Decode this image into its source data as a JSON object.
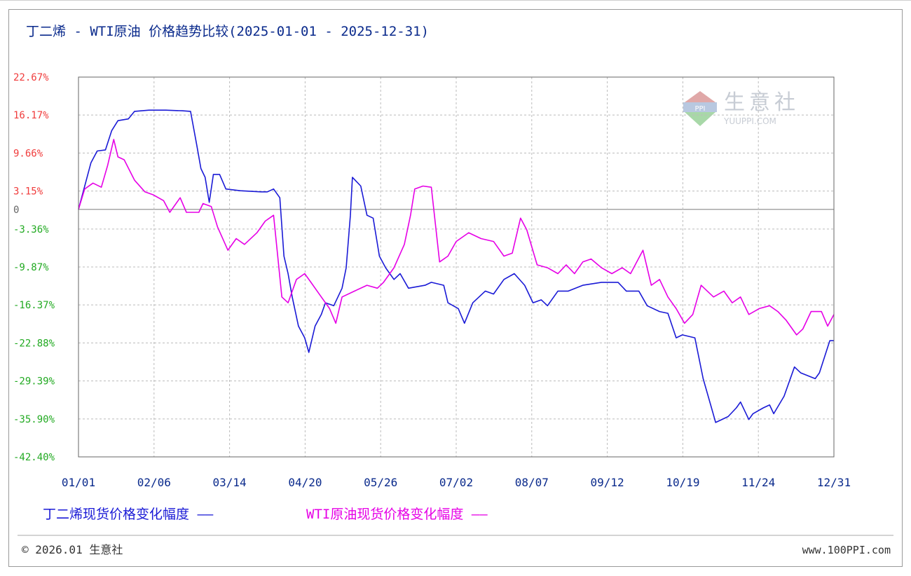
{
  "chart_data": {
    "type": "line",
    "title": "丁二烯 - WTI原油 价格趋势比较(2025-01-01 - 2025-12-31)",
    "x_ticks": [
      "01/01",
      "02/06",
      "03/14",
      "04/20",
      "05/26",
      "07/02",
      "08/07",
      "09/12",
      "10/19",
      "11/24",
      "12/31"
    ],
    "y_ticks": [
      "22.67%",
      "16.17%",
      "9.66%",
      "3.15%",
      "0",
      "-3.36%",
      "-9.87%",
      "-16.37%",
      "-22.88%",
      "-29.39%",
      "-35.90%",
      "-42.40%"
    ],
    "y_tick_values": [
      22.67,
      16.17,
      9.66,
      3.15,
      0,
      -3.36,
      -9.87,
      -16.37,
      -22.88,
      -29.39,
      -35.9,
      -42.4
    ],
    "x_range": [
      "2025-01-01",
      "2025-12-31"
    ],
    "ylim": [
      -42.4,
      22.67
    ],
    "grid": true,
    "legend_position": "bottom",
    "series": [
      {
        "name": "丁二烯现货价格变化幅度",
        "legend_label": "丁二烯现货价格变化幅度 ——",
        "color": "#1a1ad6",
        "points": [
          [
            "2025-01-01",
            0
          ],
          [
            "2025-01-04",
            4
          ],
          [
            "2025-01-07",
            8
          ],
          [
            "2025-01-10",
            10
          ],
          [
            "2025-01-14",
            10.2
          ],
          [
            "2025-01-17",
            13.5
          ],
          [
            "2025-01-20",
            15.2
          ],
          [
            "2025-01-25",
            15.5
          ],
          [
            "2025-01-28",
            16.8
          ],
          [
            "2025-02-04",
            17
          ],
          [
            "2025-02-12",
            17
          ],
          [
            "2025-02-20",
            16.9
          ],
          [
            "2025-02-24",
            16.8
          ],
          [
            "2025-02-27",
            11
          ],
          [
            "2025-03-01",
            7
          ],
          [
            "2025-03-03",
            5.5
          ],
          [
            "2025-03-05",
            1.2
          ],
          [
            "2025-03-07",
            6
          ],
          [
            "2025-03-10",
            6
          ],
          [
            "2025-03-13",
            3.5
          ],
          [
            "2025-03-20",
            3.2
          ],
          [
            "2025-03-30",
            3
          ],
          [
            "2025-04-02",
            3
          ],
          [
            "2025-04-05",
            3.5
          ],
          [
            "2025-04-08",
            2
          ],
          [
            "2025-04-10",
            -8
          ],
          [
            "2025-04-12",
            -11
          ],
          [
            "2025-04-14",
            -15
          ],
          [
            "2025-04-17",
            -20
          ],
          [
            "2025-04-20",
            -22
          ],
          [
            "2025-04-22",
            -24.5
          ],
          [
            "2025-04-25",
            -20
          ],
          [
            "2025-04-28",
            -18
          ],
          [
            "2025-04-30",
            -16
          ],
          [
            "2025-05-04",
            -16.5
          ],
          [
            "2025-05-08",
            -13.5
          ],
          [
            "2025-05-10",
            -10
          ],
          [
            "2025-05-12",
            -1
          ],
          [
            "2025-05-13",
            5.5
          ],
          [
            "2025-05-17",
            4
          ],
          [
            "2025-05-20",
            -1
          ],
          [
            "2025-05-23",
            -1.5
          ],
          [
            "2025-05-26",
            -8
          ],
          [
            "2025-05-29",
            -10
          ],
          [
            "2025-06-02",
            -12
          ],
          [
            "2025-06-05",
            -11
          ],
          [
            "2025-06-09",
            -13.5
          ],
          [
            "2025-06-17",
            -13
          ],
          [
            "2025-06-20",
            -12.5
          ],
          [
            "2025-06-26",
            -13
          ],
          [
            "2025-06-28",
            -16
          ],
          [
            "2025-07-03",
            -17
          ],
          [
            "2025-07-06",
            -19.5
          ],
          [
            "2025-07-10",
            -16
          ],
          [
            "2025-07-16",
            -14
          ],
          [
            "2025-07-20",
            -14.5
          ],
          [
            "2025-07-25",
            -12
          ],
          [
            "2025-07-30",
            -11
          ],
          [
            "2025-08-04",
            -13
          ],
          [
            "2025-08-08",
            -16
          ],
          [
            "2025-08-12",
            -15.5
          ],
          [
            "2025-08-15",
            -16.5
          ],
          [
            "2025-08-20",
            -14
          ],
          [
            "2025-08-25",
            -14
          ],
          [
            "2025-09-01",
            -13
          ],
          [
            "2025-09-10",
            -12.5
          ],
          [
            "2025-09-18",
            -12.5
          ],
          [
            "2025-09-22",
            -14
          ],
          [
            "2025-09-28",
            -14
          ],
          [
            "2025-10-02",
            -16.5
          ],
          [
            "2025-10-08",
            -17.5
          ],
          [
            "2025-10-12",
            -17.8
          ],
          [
            "2025-10-16",
            -22
          ],
          [
            "2025-10-19",
            -21.5
          ],
          [
            "2025-10-25",
            -22
          ],
          [
            "2025-10-29",
            -29
          ],
          [
            "2025-11-02",
            -34
          ],
          [
            "2025-11-04",
            -36.5
          ],
          [
            "2025-11-10",
            -35.5
          ],
          [
            "2025-11-14",
            -34
          ],
          [
            "2025-11-16",
            -33
          ],
          [
            "2025-11-20",
            -36
          ],
          [
            "2025-11-22",
            -35
          ],
          [
            "2025-11-27",
            -34
          ],
          [
            "2025-11-30",
            -33.5
          ],
          [
            "2025-12-02",
            -35
          ],
          [
            "2025-12-07",
            -32
          ],
          [
            "2025-12-12",
            -27
          ],
          [
            "2025-12-15",
            -28
          ],
          [
            "2025-12-22",
            -29
          ],
          [
            "2025-12-24",
            -28
          ],
          [
            "2025-12-29",
            -22.5
          ],
          [
            "2025-12-31",
            -22.5
          ]
        ]
      },
      {
        "name": "WTI原油现货价格变化幅度",
        "legend_label": "WTI原油现货价格变化幅度 ——",
        "color": "#e600e6",
        "points": [
          [
            "2025-01-01",
            0
          ],
          [
            "2025-01-04",
            3.5
          ],
          [
            "2025-01-08",
            4.5
          ],
          [
            "2025-01-12",
            3.8
          ],
          [
            "2025-01-15",
            7.5
          ],
          [
            "2025-01-18",
            12
          ],
          [
            "2025-01-20",
            9
          ],
          [
            "2025-01-23",
            8.5
          ],
          [
            "2025-01-28",
            5
          ],
          [
            "2025-02-02",
            3
          ],
          [
            "2025-02-06",
            2.5
          ],
          [
            "2025-02-11",
            1.5
          ],
          [
            "2025-02-14",
            -0.5
          ],
          [
            "2025-02-19",
            2
          ],
          [
            "2025-02-22",
            -0.5
          ],
          [
            "2025-02-28",
            -0.5
          ],
          [
            "2025-03-02",
            1
          ],
          [
            "2025-03-06",
            0.5
          ],
          [
            "2025-03-09",
            -3
          ],
          [
            "2025-03-14",
            -7
          ],
          [
            "2025-03-18",
            -5
          ],
          [
            "2025-03-22",
            -6
          ],
          [
            "2025-03-28",
            -4
          ],
          [
            "2025-04-01",
            -2
          ],
          [
            "2025-04-05",
            -1
          ],
          [
            "2025-04-07",
            -8
          ],
          [
            "2025-04-09",
            -15
          ],
          [
            "2025-04-12",
            -16
          ],
          [
            "2025-04-16",
            -12
          ],
          [
            "2025-04-20",
            -11
          ],
          [
            "2025-04-23",
            -12.5
          ],
          [
            "2025-04-27",
            -14.5
          ],
          [
            "2025-05-02",
            -17
          ],
          [
            "2025-05-05",
            -19.5
          ],
          [
            "2025-05-08",
            -15
          ],
          [
            "2025-05-14",
            -14
          ],
          [
            "2025-05-20",
            -13
          ],
          [
            "2025-05-25",
            -13.5
          ],
          [
            "2025-05-28",
            -12.5
          ],
          [
            "2025-06-02",
            -10
          ],
          [
            "2025-06-07",
            -6
          ],
          [
            "2025-06-10",
            -1
          ],
          [
            "2025-06-12",
            3.5
          ],
          [
            "2025-06-16",
            4
          ],
          [
            "2025-06-20",
            3.8
          ],
          [
            "2025-06-24",
            -9
          ],
          [
            "2025-06-28",
            -8
          ],
          [
            "2025-07-02",
            -5.5
          ],
          [
            "2025-07-08",
            -4
          ],
          [
            "2025-07-14",
            -5
          ],
          [
            "2025-07-20",
            -5.5
          ],
          [
            "2025-07-25",
            -8
          ],
          [
            "2025-07-29",
            -7.5
          ],
          [
            "2025-08-02",
            -1.5
          ],
          [
            "2025-08-05",
            -3.5
          ],
          [
            "2025-08-10",
            -9.5
          ],
          [
            "2025-08-15",
            -10
          ],
          [
            "2025-08-20",
            -11
          ],
          [
            "2025-08-24",
            -9.5
          ],
          [
            "2025-08-28",
            -11
          ],
          [
            "2025-09-01",
            -9
          ],
          [
            "2025-09-05",
            -8.5
          ],
          [
            "2025-09-10",
            -10
          ],
          [
            "2025-09-15",
            -11
          ],
          [
            "2025-09-20",
            -10
          ],
          [
            "2025-09-24",
            -11
          ],
          [
            "2025-09-30",
            -7
          ],
          [
            "2025-10-04",
            -13
          ],
          [
            "2025-10-08",
            -12
          ],
          [
            "2025-10-12",
            -15
          ],
          [
            "2025-10-16",
            -17
          ],
          [
            "2025-10-20",
            -19.5
          ],
          [
            "2025-10-24",
            -18
          ],
          [
            "2025-10-28",
            -13
          ],
          [
            "2025-11-03",
            -15
          ],
          [
            "2025-11-08",
            -14
          ],
          [
            "2025-11-12",
            -16
          ],
          [
            "2025-11-16",
            -15
          ],
          [
            "2025-11-20",
            -18
          ],
          [
            "2025-11-25",
            -17
          ],
          [
            "2025-11-30",
            -16.5
          ],
          [
            "2025-12-04",
            -17.5
          ],
          [
            "2025-12-08",
            -19
          ],
          [
            "2025-12-13",
            -21.5
          ],
          [
            "2025-12-16",
            -20.5
          ],
          [
            "2025-12-20",
            -17.5
          ],
          [
            "2025-12-25",
            -17.5
          ],
          [
            "2025-12-28",
            -20
          ],
          [
            "2025-12-31",
            -18
          ]
        ]
      }
    ],
    "watermark": {
      "text": "生意社",
      "subtext": "YUUPPI.COM",
      "logo_text": "PPI"
    },
    "footer": {
      "left": "© 2026.01 生意社",
      "right": "www.100PPI.com"
    }
  },
  "colors": {
    "axis_positive": "#f03c3c",
    "axis_negative": "#22aa22",
    "axis_zero": "#666666",
    "title": "#0a2a8c",
    "grid": "#bbbbbb"
  }
}
